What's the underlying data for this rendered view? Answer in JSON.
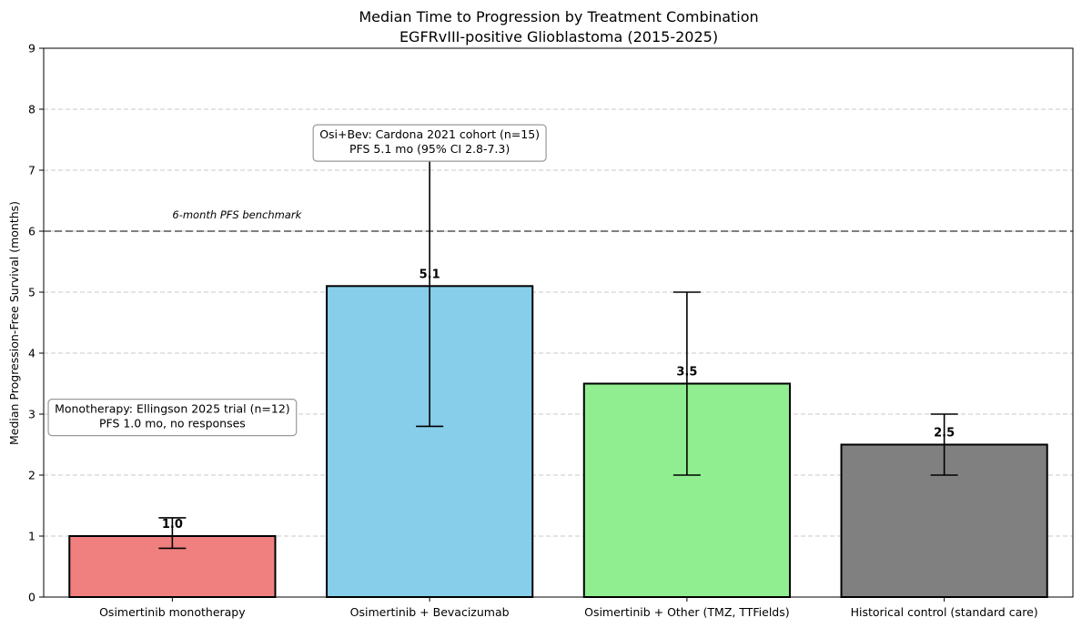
{
  "chart_data": {
    "type": "bar",
    "title": "Median Time to Progression by Treatment Combination",
    "subtitle": "EGFRvIII-positive Glioblastoma (2015-2025)",
    "xlabel": "",
    "ylabel": "Median Progression-Free Survival (months)",
    "ylim": [
      0,
      9
    ],
    "yticks": [
      0,
      1,
      2,
      3,
      4,
      5,
      6,
      7,
      8,
      9
    ],
    "grid": "y dashed",
    "categories": [
      "Osimertinib monotherapy",
      "Osimertinib + Bevacizumab",
      "Osimertinib + Other (TMZ, TTFields)",
      "Historical control (standard care)"
    ],
    "values": [
      1.0,
      5.1,
      3.5,
      2.5
    ],
    "value_labels": [
      "1.0",
      "5.1",
      "3.5",
      "2.5"
    ],
    "error_low": [
      0.8,
      2.8,
      2.0,
      2.0
    ],
    "error_high": [
      1.3,
      7.3,
      5.0,
      3.0
    ],
    "colors": [
      "#f08080",
      "#87ceeb",
      "#90ee90",
      "#808080"
    ],
    "reference_line": {
      "y": 6,
      "label": "6-month PFS benchmark",
      "color": "#555555"
    },
    "annotations": [
      {
        "lines": [
          "Monotherapy: Ellingson 2025 trial (n=12)",
          "PFS 1.0 mo, no responses"
        ],
        "anchor_category": 0,
        "y": 3.2
      },
      {
        "lines": [
          "Osi+Bev: Cardona 2021 cohort (n=15)",
          "PFS 5.1 mo (95% CI 2.8-7.3)"
        ],
        "anchor_category": 1,
        "y": 7.7
      }
    ]
  }
}
